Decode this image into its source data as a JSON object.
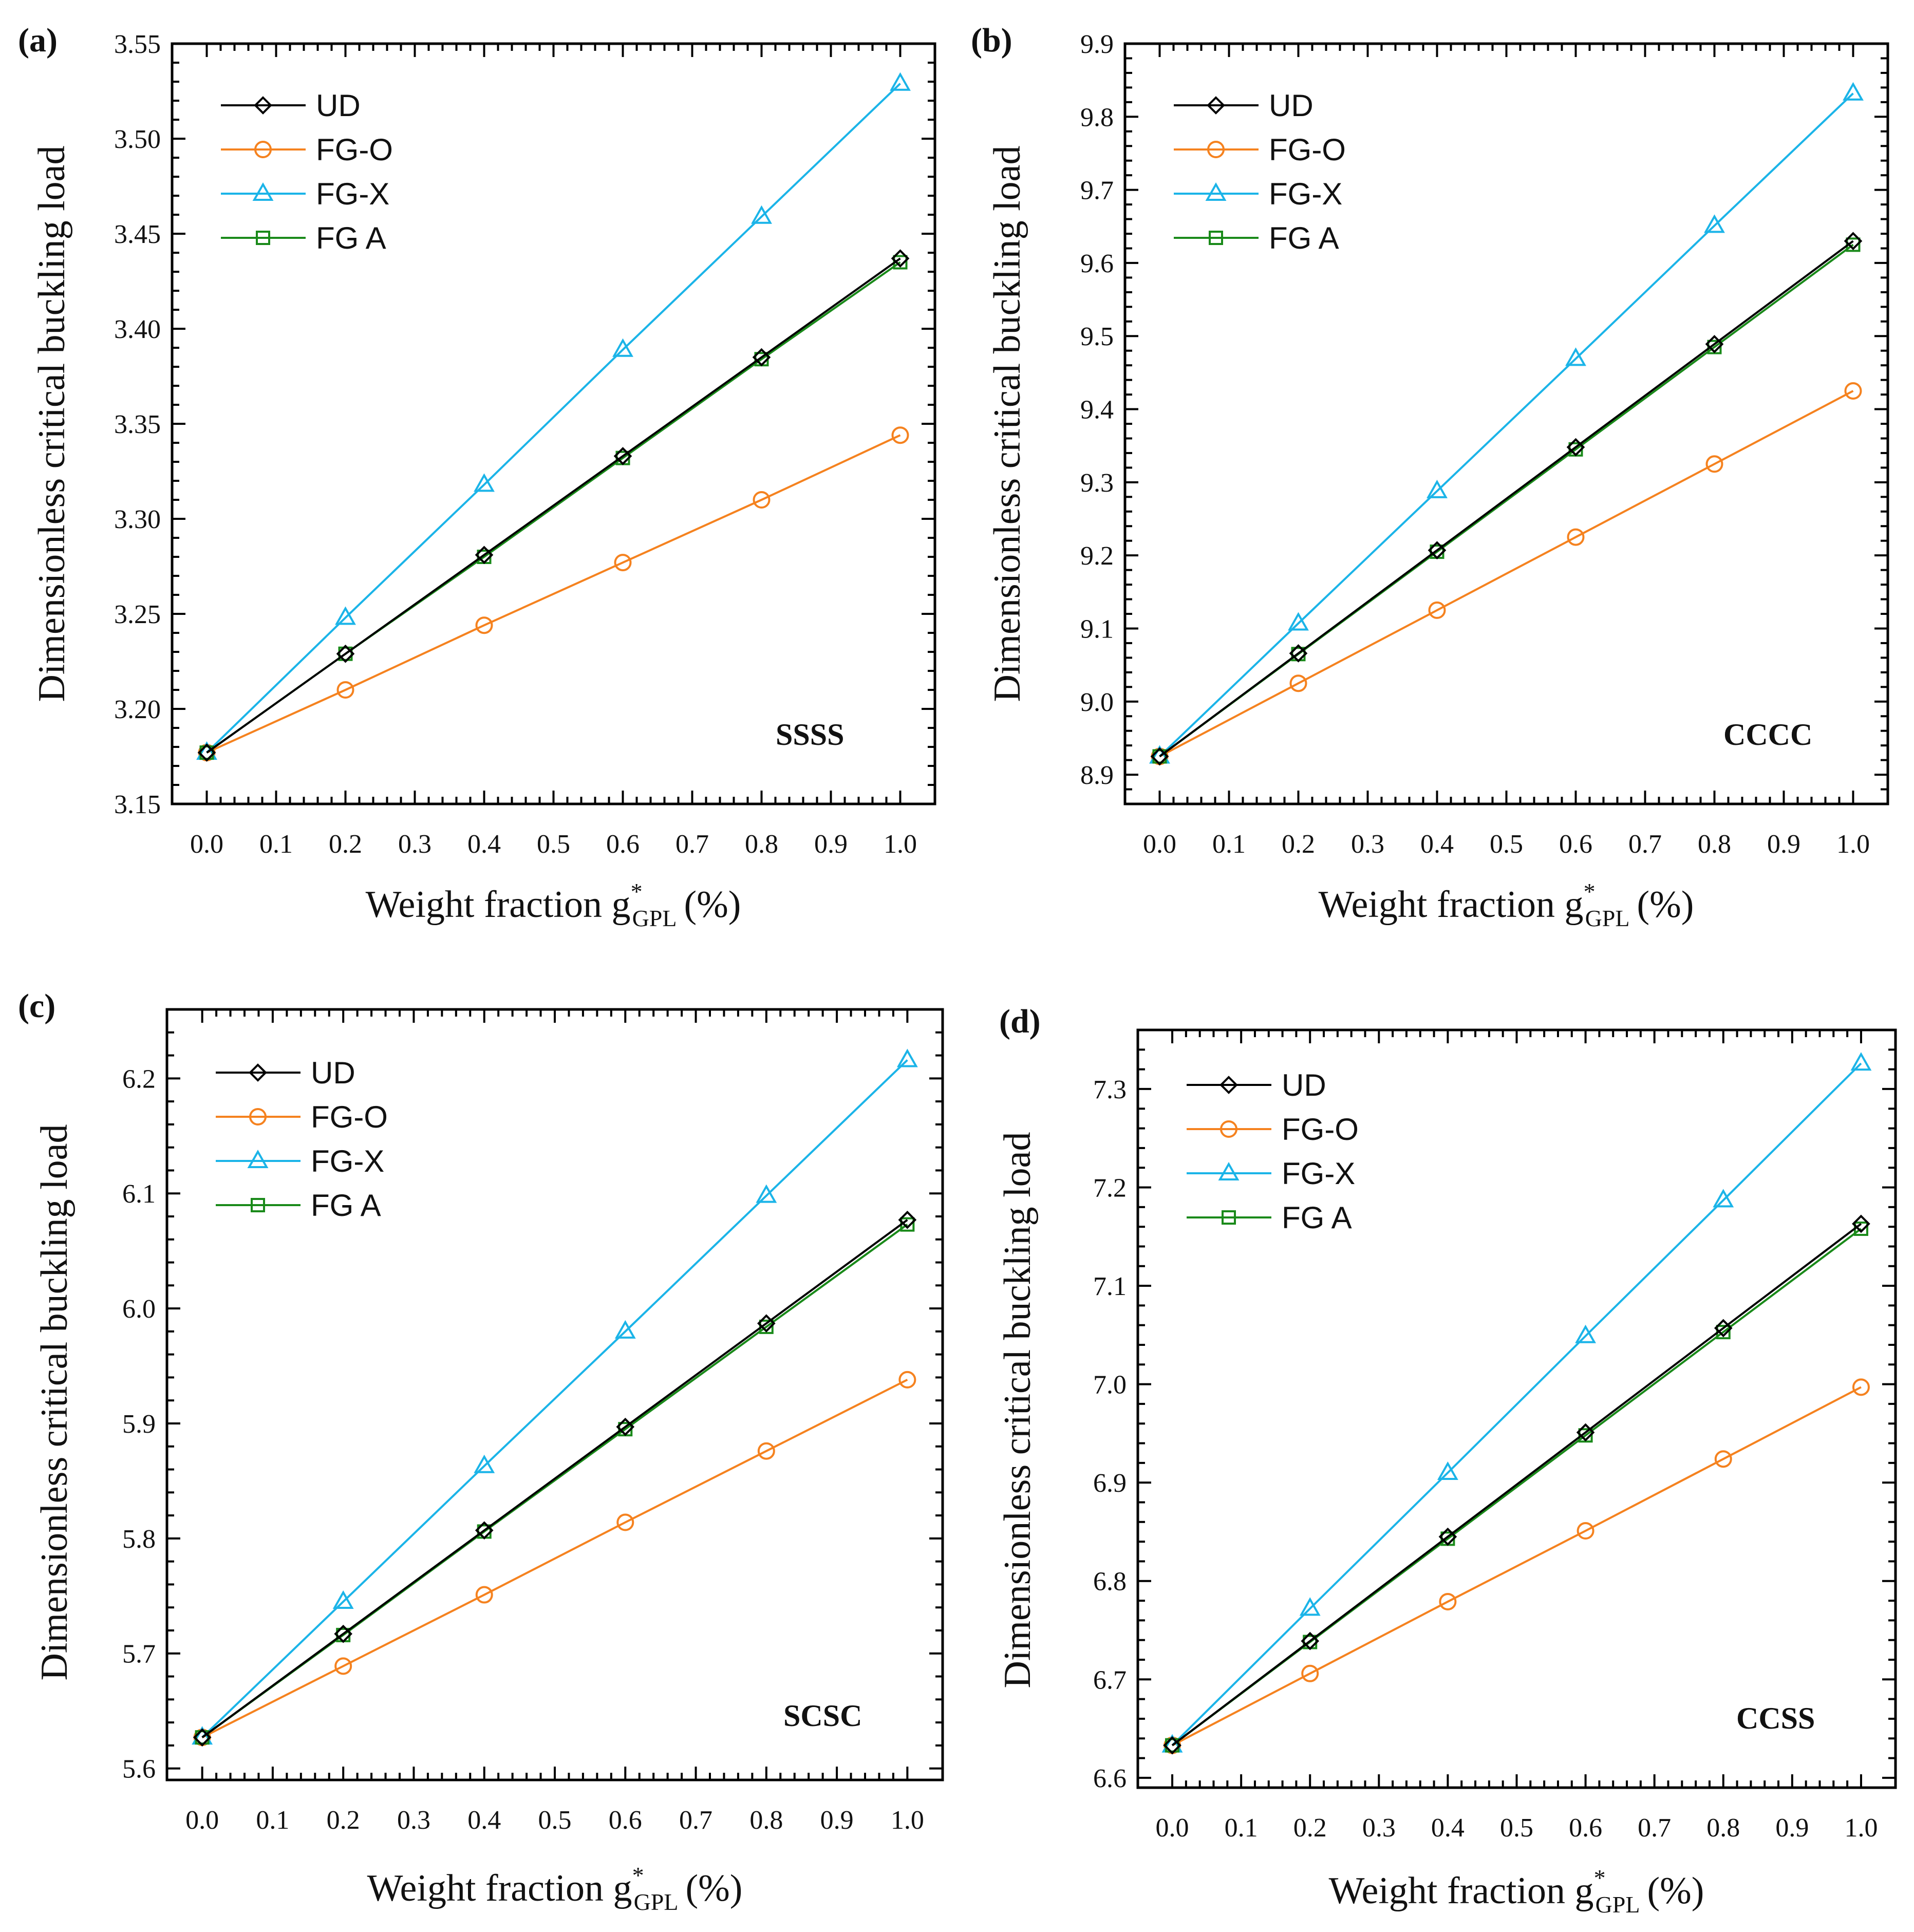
{
  "figure": {
    "legend_labels": [
      "UD",
      "FG-O",
      "FG-X",
      "FG A"
    ]
  },
  "chart_data": [
    {
      "type": "line",
      "panel_label": "(a)",
      "case_label": "SSSS",
      "title": "",
      "xlabel": "Weight fraction g",
      "xlabel_sup": "*",
      "xlabel_sub": "GPL",
      "xlabel_unit": "(%)",
      "ylabel": "Dimensionless critical buckling load",
      "xlim": [
        -0.05,
        1.05
      ],
      "ylim": [
        3.15,
        3.55
      ],
      "xticks": [
        0.0,
        0.1,
        0.2,
        0.3,
        0.4,
        0.5,
        0.6,
        0.7,
        0.8,
        0.9,
        1.0
      ],
      "xtick_labels": [
        "0.0",
        "0.1",
        "0.2",
        "0.3",
        "0.4",
        "0.5",
        "0.6",
        "0.7",
        "0.8",
        "0.9",
        "1.0"
      ],
      "yticks": [
        3.15,
        3.2,
        3.25,
        3.3,
        3.35,
        3.4,
        3.45,
        3.5,
        3.55
      ],
      "ytick_labels": [
        "3.15",
        "3.20",
        "3.25",
        "3.30",
        "3.35",
        "3.40",
        "3.45",
        "3.50",
        "3.55"
      ],
      "x": [
        0.0,
        0.2,
        0.4,
        0.6,
        0.8,
        1.0
      ],
      "series": [
        {
          "name": "UD",
          "color": "#000000",
          "marker": "diamond",
          "values": [
            3.177,
            3.229,
            3.281,
            3.333,
            3.385,
            3.437
          ]
        },
        {
          "name": "FG-O",
          "color": "#f5821f",
          "marker": "circle",
          "values": [
            3.177,
            3.21,
            3.244,
            3.277,
            3.31,
            3.344
          ]
        },
        {
          "name": "FG-X",
          "color": "#1bb4e8",
          "marker": "triangle",
          "values": [
            3.177,
            3.248,
            3.318,
            3.389,
            3.459,
            3.529
          ]
        },
        {
          "name": "FG A",
          "color": "#1a8a1a",
          "marker": "square",
          "values": [
            3.177,
            3.229,
            3.28,
            3.332,
            3.384,
            3.435
          ]
        }
      ]
    },
    {
      "type": "line",
      "panel_label": "(b)",
      "case_label": "CCCC",
      "title": "",
      "xlabel": "Weight fraction g",
      "xlabel_sup": "*",
      "xlabel_sub": "GPL",
      "xlabel_unit": "(%)",
      "ylabel": "Dimensionless critical buckling load",
      "xlim": [
        -0.05,
        1.05
      ],
      "ylim": [
        8.86,
        9.9
      ],
      "xticks": [
        0.0,
        0.1,
        0.2,
        0.3,
        0.4,
        0.5,
        0.6,
        0.7,
        0.8,
        0.9,
        1.0
      ],
      "xtick_labels": [
        "0.0",
        "0.1",
        "0.2",
        "0.3",
        "0.4",
        "0.5",
        "0.6",
        "0.7",
        "0.8",
        "0.9",
        "1.0"
      ],
      "yticks": [
        8.9,
        9.0,
        9.1,
        9.2,
        9.3,
        9.4,
        9.5,
        9.6,
        9.7,
        9.8,
        9.9
      ],
      "ytick_labels": [
        "8.9",
        "9.0",
        "9.1",
        "9.2",
        "9.3",
        "9.4",
        "9.5",
        "9.6",
        "9.7",
        "9.8",
        "9.9"
      ],
      "x": [
        0.0,
        0.2,
        0.4,
        0.6,
        0.8,
        1.0
      ],
      "series": [
        {
          "name": "UD",
          "color": "#000000",
          "marker": "diamond",
          "values": [
            8.925,
            9.066,
            9.207,
            9.348,
            9.489,
            9.63
          ]
        },
        {
          "name": "FG-O",
          "color": "#f5821f",
          "marker": "circle",
          "values": [
            8.925,
            9.025,
            9.125,
            9.225,
            9.325,
            9.425
          ]
        },
        {
          "name": "FG-X",
          "color": "#1bb4e8",
          "marker": "triangle",
          "values": [
            8.925,
            9.107,
            9.288,
            9.469,
            9.651,
            9.832
          ]
        },
        {
          "name": "FG A",
          "color": "#1a8a1a",
          "marker": "square",
          "values": [
            8.925,
            9.065,
            9.205,
            9.345,
            9.485,
            9.625
          ]
        }
      ]
    },
    {
      "type": "line",
      "panel_label": "(c)",
      "case_label": "SCSC",
      "title": "",
      "xlabel": "Weight fraction g",
      "xlabel_sup": "*",
      "xlabel_sub": "GPL",
      "xlabel_unit": "(%)",
      "ylabel": "Dimensionless critical buckling load",
      "xlim": [
        -0.05,
        1.05
      ],
      "ylim": [
        5.59,
        6.26
      ],
      "xticks": [
        0.0,
        0.1,
        0.2,
        0.3,
        0.4,
        0.5,
        0.6,
        0.7,
        0.8,
        0.9,
        1.0
      ],
      "xtick_labels": [
        "0.0",
        "0.1",
        "0.2",
        "0.3",
        "0.4",
        "0.5",
        "0.6",
        "0.7",
        "0.8",
        "0.9",
        "1.0"
      ],
      "yticks": [
        5.6,
        5.7,
        5.8,
        5.9,
        6.0,
        6.1,
        6.2
      ],
      "ytick_labels": [
        "5.6",
        "5.7",
        "5.8",
        "5.9",
        "6.0",
        "6.1",
        "6.2"
      ],
      "x": [
        0.0,
        0.2,
        0.4,
        0.6,
        0.8,
        1.0
      ],
      "series": [
        {
          "name": "UD",
          "color": "#000000",
          "marker": "diamond",
          "values": [
            5.627,
            5.717,
            5.807,
            5.897,
            5.987,
            6.077
          ]
        },
        {
          "name": "FG-O",
          "color": "#f5821f",
          "marker": "circle",
          "values": [
            5.627,
            5.689,
            5.751,
            5.814,
            5.876,
            5.938
          ]
        },
        {
          "name": "FG-X",
          "color": "#1bb4e8",
          "marker": "triangle",
          "values": [
            5.627,
            5.745,
            5.863,
            5.98,
            6.098,
            6.216
          ]
        },
        {
          "name": "FG A",
          "color": "#1a8a1a",
          "marker": "square",
          "values": [
            5.627,
            5.716,
            5.806,
            5.895,
            5.984,
            6.073
          ]
        }
      ]
    },
    {
      "type": "line",
      "panel_label": "(d)",
      "case_label": "CCSS",
      "title": "",
      "xlabel": "Weight fraction g",
      "xlabel_sup": "*",
      "xlabel_sub": "GPL",
      "xlabel_unit": "(%)",
      "ylabel": "Dimensionless critical buckling load",
      "xlim": [
        -0.05,
        1.05
      ],
      "ylim": [
        6.59,
        7.36
      ],
      "xticks": [
        0.0,
        0.1,
        0.2,
        0.3,
        0.4,
        0.5,
        0.6,
        0.7,
        0.8,
        0.9,
        1.0
      ],
      "xtick_labels": [
        "0.0",
        "0.1",
        "0.2",
        "0.3",
        "0.4",
        "0.5",
        "0.6",
        "0.7",
        "0.8",
        "0.9",
        "1.0"
      ],
      "yticks": [
        6.6,
        6.7,
        6.8,
        6.9,
        7.0,
        7.1,
        7.2,
        7.3
      ],
      "ytick_labels": [
        "6.6",
        "6.7",
        "6.8",
        "6.9",
        "7.0",
        "7.1",
        "7.2",
        "7.3"
      ],
      "x": [
        0.0,
        0.2,
        0.4,
        0.6,
        0.8,
        1.0
      ],
      "series": [
        {
          "name": "UD",
          "color": "#000000",
          "marker": "diamond",
          "values": [
            6.633,
            6.739,
            6.845,
            6.951,
            7.057,
            7.163
          ]
        },
        {
          "name": "FG-O",
          "color": "#f5821f",
          "marker": "circle",
          "values": [
            6.633,
            6.706,
            6.779,
            6.851,
            6.924,
            6.997
          ]
        },
        {
          "name": "FG-X",
          "color": "#1bb4e8",
          "marker": "triangle",
          "values": [
            6.633,
            6.772,
            6.91,
            7.049,
            7.187,
            7.326
          ]
        },
        {
          "name": "FG A",
          "color": "#1a8a1a",
          "marker": "square",
          "values": [
            6.633,
            6.738,
            6.843,
            6.948,
            7.053,
            7.158
          ]
        }
      ]
    }
  ]
}
